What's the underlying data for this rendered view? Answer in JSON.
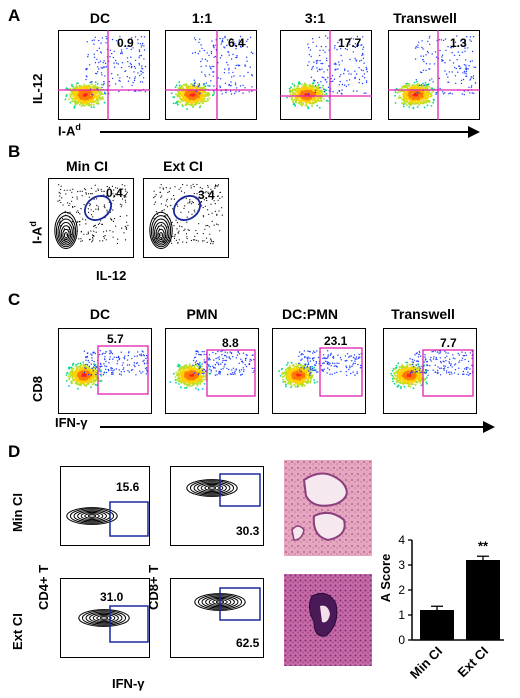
{
  "panel_a": {
    "letter": "A",
    "y_label": "IL-12",
    "x_label": "I-A",
    "x_label_sup": "d",
    "plots": [
      {
        "title": "DC",
        "value": "0.9"
      },
      {
        "title": "1:1",
        "value": "6.4"
      },
      {
        "title": "3:1",
        "value": "17.7"
      },
      {
        "title": "Transwell",
        "value": "1.3"
      }
    ]
  },
  "panel_b": {
    "letter": "B",
    "y_label": "I-A",
    "y_label_sup": "d",
    "x_label": "IL-12",
    "plots": [
      {
        "title": "Min CI",
        "value": "0.4"
      },
      {
        "title": "Ext CI",
        "value": "3.4"
      }
    ]
  },
  "panel_c": {
    "letter": "C",
    "y_label": "CD8",
    "x_label": "IFN-γ",
    "plots": [
      {
        "title": "DC",
        "value": "5.7"
      },
      {
        "title": "PMN",
        "value": "8.8"
      },
      {
        "title": "DC:PMN",
        "value": "23.1"
      },
      {
        "title": "Transwell",
        "value": "7.7"
      }
    ]
  },
  "panel_d": {
    "letter": "D",
    "row_labels": [
      "Min CI",
      "Ext  CI"
    ],
    "y_label_left": "CD4+ T",
    "y_label_right": "CD8+ T",
    "x_label": "IFN-γ",
    "values": {
      "cd4_min": "15.6",
      "cd8_min": "30.3",
      "cd4_ext": "31.0",
      "cd8_ext": "62.5"
    },
    "significance": "**"
  },
  "chart_data": {
    "type": "bar",
    "categories": [
      "Min CI",
      "Ext CI"
    ],
    "values": [
      1.2,
      3.2
    ],
    "errors": [
      0.15,
      0.15
    ],
    "ylabel": "A Score",
    "ylim": [
      0,
      4
    ],
    "yticks": [
      0,
      1,
      2,
      3,
      4
    ]
  }
}
